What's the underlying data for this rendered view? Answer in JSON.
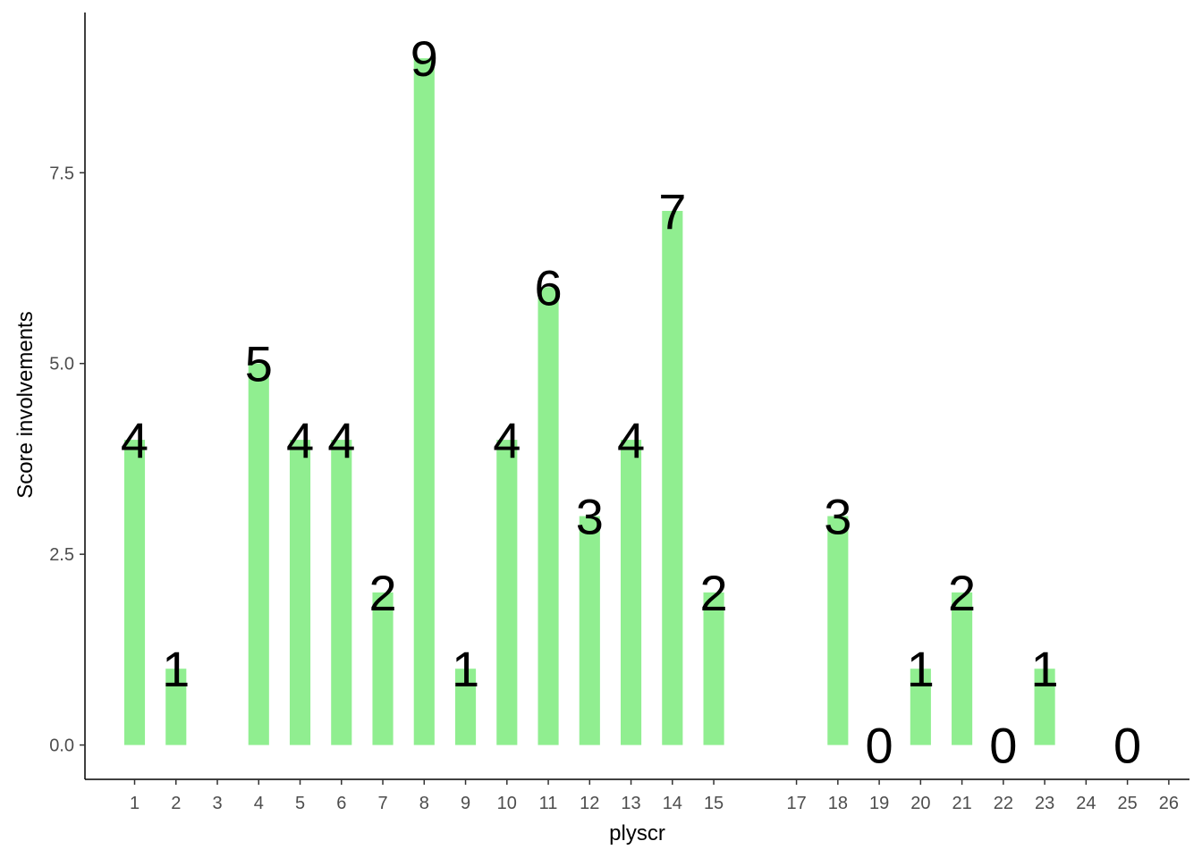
{
  "chart_data": {
    "type": "bar",
    "title": "",
    "xlabel": "plyscr",
    "ylabel": "Score involvements",
    "x": [
      1,
      2,
      4,
      5,
      6,
      7,
      8,
      9,
      10,
      11,
      12,
      13,
      14,
      15,
      18,
      19,
      20,
      21,
      22,
      23,
      25
    ],
    "values": [
      4,
      1,
      5,
      4,
      4,
      2,
      9,
      1,
      4,
      6,
      3,
      4,
      7,
      2,
      3,
      0,
      1,
      2,
      0,
      1,
      0
    ],
    "x_ticks": [
      "1",
      "2",
      "3",
      "4",
      "5",
      "6",
      "7",
      "8",
      "9",
      "10",
      "11",
      "12",
      "13",
      "14",
      "15",
      "17",
      "18",
      "19",
      "20",
      "21",
      "22",
      "23",
      "24",
      "25",
      "26"
    ],
    "y_ticks": [
      "0.0",
      "2.5",
      "5.0",
      "7.5"
    ],
    "ylim": [
      -0.45,
      9.6
    ],
    "xlim": [
      -0.2,
      26.5
    ],
    "bar_color": "#90EE90",
    "grid": false,
    "legend": "none"
  }
}
